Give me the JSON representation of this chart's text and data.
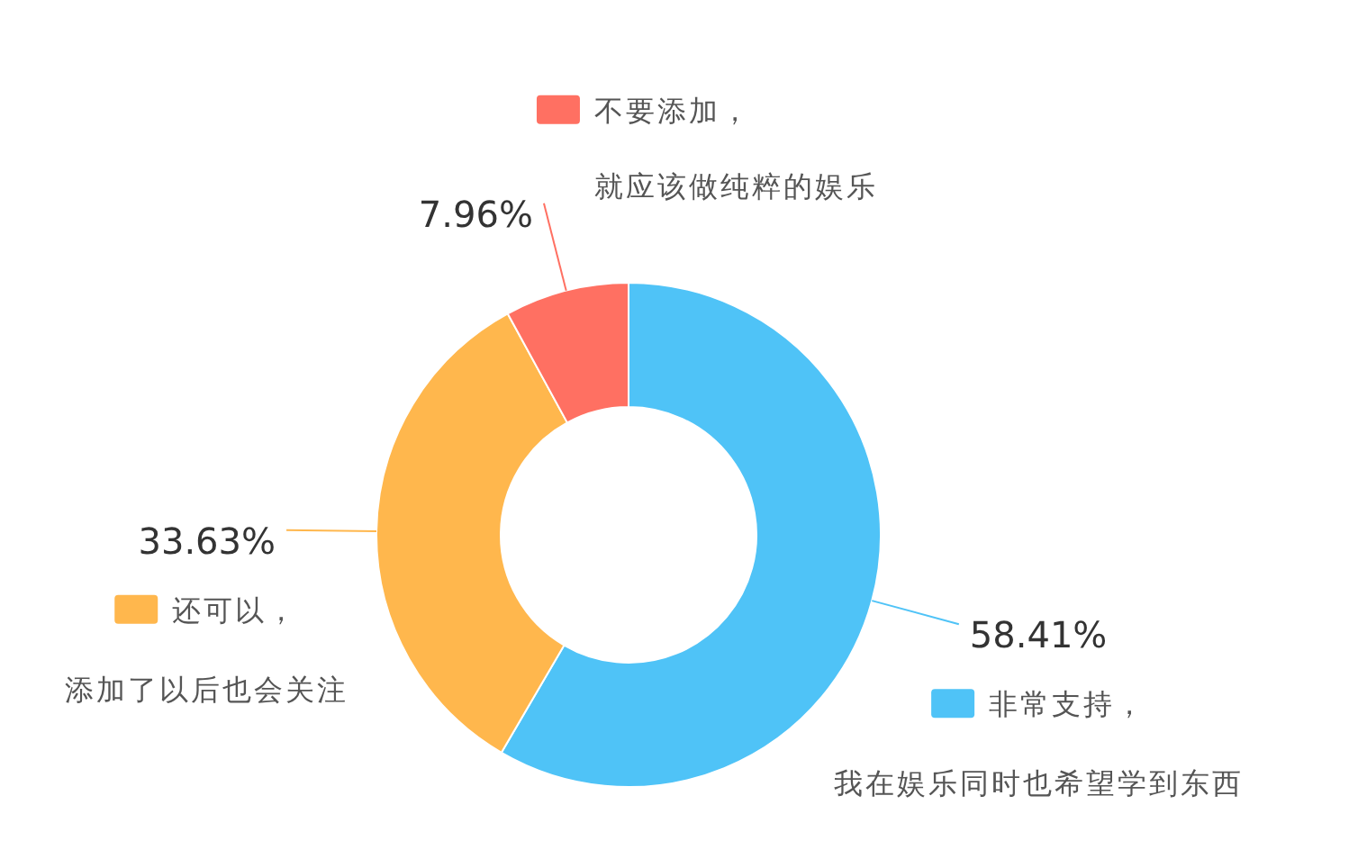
{
  "chart_data": {
    "type": "donut",
    "categories": [
      "非常支持，我在娱乐同时也希望学到东西",
      "还可以，添加了以后也会关注",
      "不要添加，就应该做纯粹的娱乐"
    ],
    "values": [
      58.41,
      33.63,
      7.96
    ],
    "colors": [
      "#4fc3f7",
      "#ffb74d",
      "#ff7062"
    ],
    "value_labels": [
      "58.41%",
      "33.63%",
      "7.96%"
    ]
  }
}
